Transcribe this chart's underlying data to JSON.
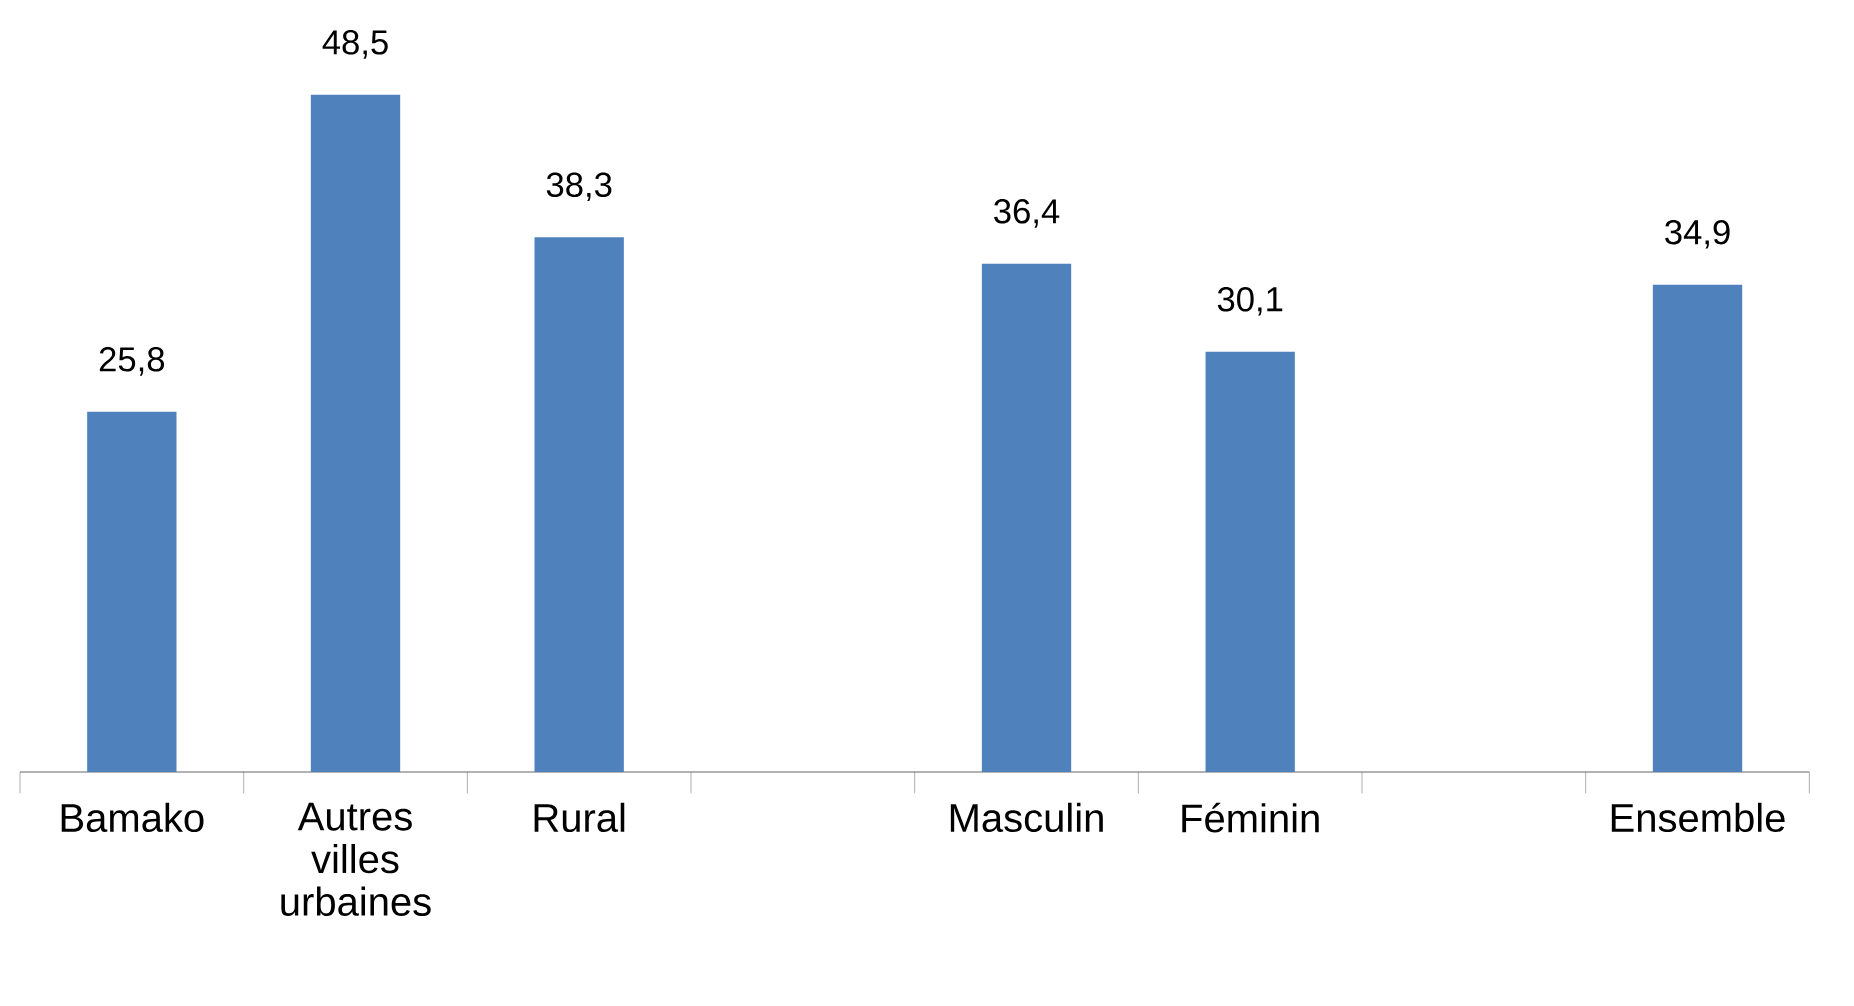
{
  "chart_data": {
    "type": "bar",
    "categories": [
      "Bamako",
      "Autres villes urbaines",
      "Rural",
      null,
      "Masculin",
      "Féminin",
      null,
      "Ensemble"
    ],
    "values": [
      25.8,
      48.5,
      38.3,
      null,
      36.4,
      30.1,
      null,
      34.9
    ],
    "value_labels": [
      "25,8",
      "48,5",
      "38,3",
      null,
      "36,4",
      "30,1",
      null,
      "34,9"
    ],
    "color": "#4f81bd",
    "tick_labels": "x"
  }
}
